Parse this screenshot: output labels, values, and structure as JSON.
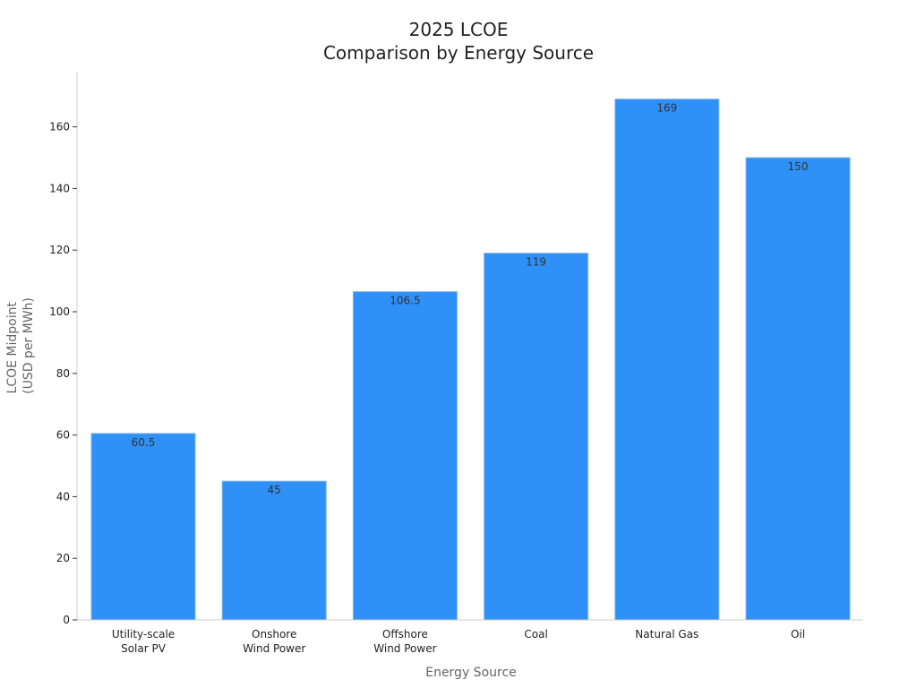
{
  "chart_data": {
    "type": "bar",
    "title": [
      "2025 LCOE",
      "Comparison by Energy Source"
    ],
    "xlabel": "Energy Source",
    "ylabel": [
      "LCOE Midpoint",
      "(USD per MWh)"
    ],
    "categories": [
      [
        "Utility-scale",
        "Solar PV"
      ],
      [
        "Onshore",
        "Wind Power"
      ],
      [
        "Offshore",
        "Wind Power"
      ],
      [
        "Coal"
      ],
      [
        "Natural Gas"
      ],
      [
        "Oil"
      ]
    ],
    "values": [
      60.5,
      45,
      106.5,
      119,
      169,
      150
    ],
    "value_labels": [
      "60.5",
      "45",
      "106.5",
      "119",
      "169",
      "150"
    ],
    "ylim": [
      0,
      177
    ],
    "yticks": [
      0,
      20,
      40,
      60,
      80,
      100,
      120,
      140,
      160
    ],
    "grid": false,
    "legend": false,
    "colors": {
      "bar": "#2f90f7",
      "bar_edge": "#7fb6ee",
      "axis": "#cccccc"
    }
  }
}
